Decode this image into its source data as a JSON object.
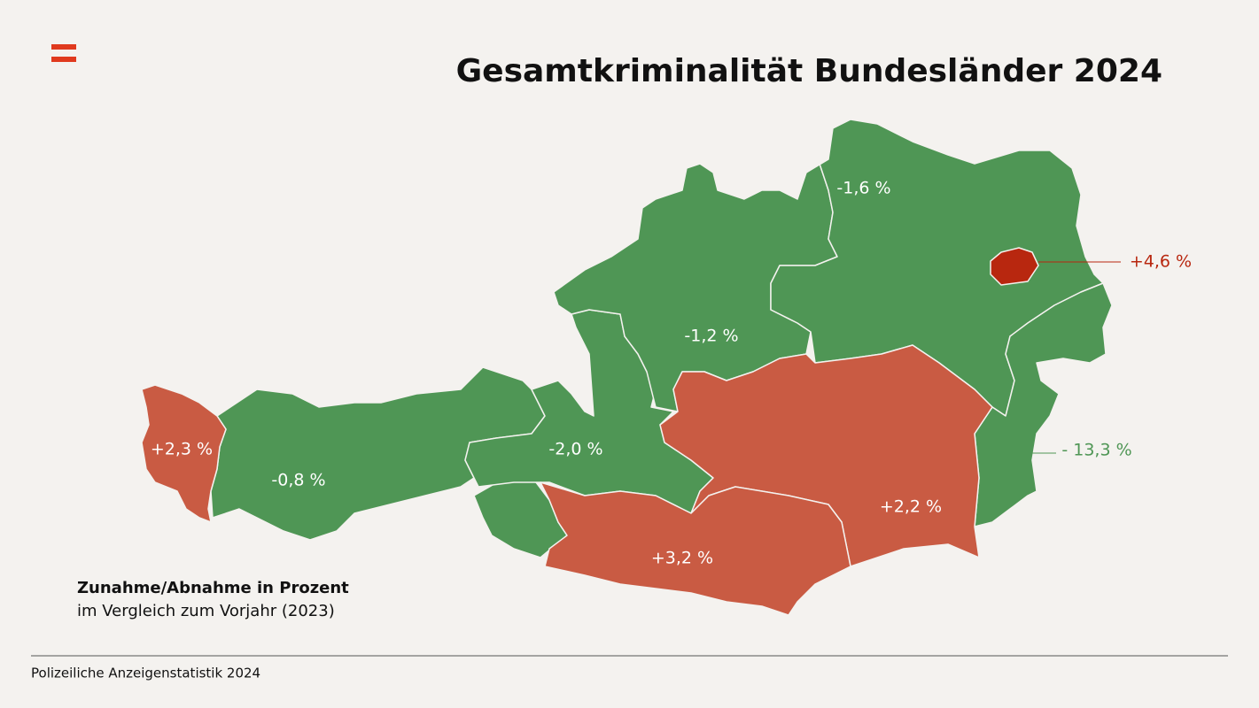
{
  "header": {
    "title": "Gesamtkriminalität Bundesländer 2024"
  },
  "regions": [
    {
      "label": "+2,3 %",
      "color": "#c95b43"
    },
    {
      "label": "-0,8 %",
      "color": "#4f9655"
    },
    {
      "label": "-2,0 %",
      "color": "#4f9655"
    },
    {
      "label": "-1,2 %",
      "color": "#4f9655"
    },
    {
      "label": "-1,6 %",
      "color": "#4f9655"
    },
    {
      "label": "+4,6 %",
      "color": "#b8270f"
    },
    {
      "label": "- 13,3 %",
      "color": "#4f9655"
    },
    {
      "label": "+2,2 %",
      "color": "#c95b43"
    },
    {
      "label": "+3,2 %",
      "color": "#c95b43"
    }
  ],
  "legend": {
    "title": "Zunahme/Abnahme in Prozent",
    "subtitle": "im Vergleich zum Vorjahr (2023)"
  },
  "footer": {
    "source": "Polizeiliche Anzeigenstatistik 2024"
  }
}
